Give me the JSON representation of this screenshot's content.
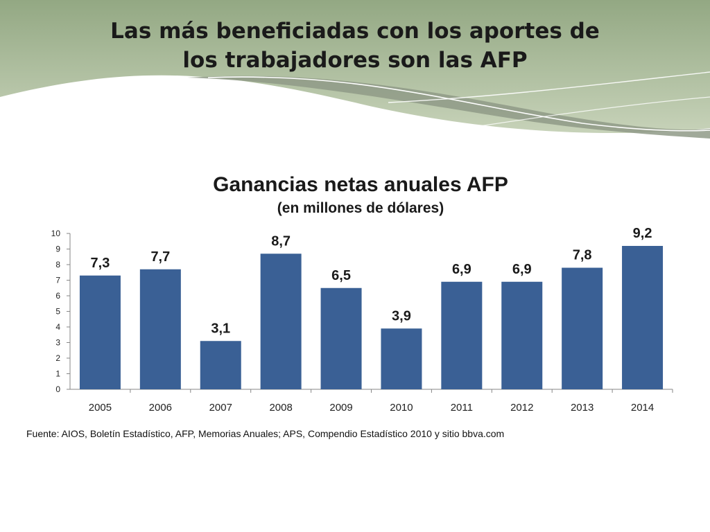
{
  "slide": {
    "title_line1": "Las más beneficiadas con los aportes de",
    "title_line2": "los trabajadores son las AFP",
    "source": "Fuente: AIOS, Boletín Estadístico, AFP, Memorias Anuales; APS, Compendio Estadístico 2010 y sitio bbva.com"
  },
  "colors": {
    "bar": "#3a6095",
    "header_green": "#a9bb97",
    "header_dark": "#8c9a83"
  },
  "chart_data": {
    "type": "bar",
    "title": "Ganancias netas anuales AFP",
    "subtitle": "(en millones de dólares)",
    "xlabel": "",
    "ylabel": "",
    "categories": [
      "2005",
      "2006",
      "2007",
      "2008",
      "2009",
      "2010",
      "2011",
      "2012",
      "2013",
      "2014"
    ],
    "values": [
      7.3,
      7.7,
      3.1,
      8.7,
      6.5,
      3.9,
      6.9,
      6.9,
      7.8,
      9.2
    ],
    "data_labels": [
      "7,3",
      "7,7",
      "3,1",
      "8,7",
      "6,5",
      "3,9",
      "6,9",
      "6,9",
      "7,8",
      "9,2"
    ],
    "ylim": [
      0,
      10
    ],
    "yticks": [
      0,
      1,
      2,
      3,
      4,
      5,
      6,
      7,
      8,
      9,
      10
    ],
    "grid": false,
    "legend": "none"
  }
}
